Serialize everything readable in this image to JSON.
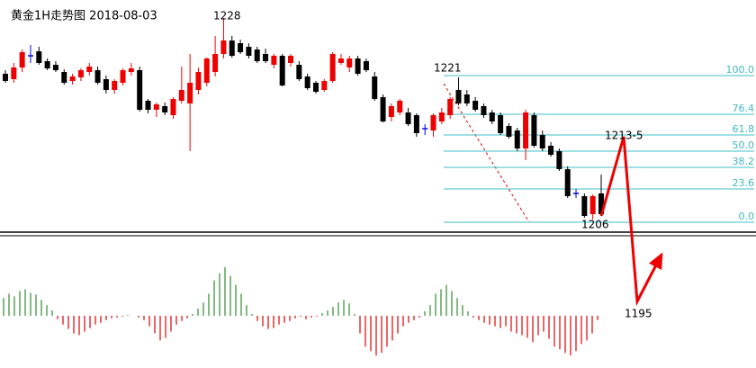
{
  "chart_data": {
    "type": "candlestick",
    "title": "黄金1H走势图 2018-08-03",
    "ylim": [
      1204,
      1230
    ],
    "up_color": "#ee0000",
    "down_color": "#000000",
    "doji_color": "#0000ee",
    "candles": {
      "open": [
        1221.8,
        1221.2,
        1222.5,
        1223.8,
        1224.3,
        1223.2,
        1222.8,
        1222.0,
        1221.0,
        1221.4,
        1222.0,
        1222.2,
        1221.2,
        1220.0,
        1220.8,
        1222.0,
        1222.2,
        1218.8,
        1217.8,
        1218.2,
        1217.2,
        1218.8,
        1218.5,
        1220.0,
        1220.8,
        1222.0,
        1224.0,
        1225.5,
        1225.2,
        1224.8,
        1224.5,
        1224.0,
        1222.8,
        1223.8,
        1223.0,
        1222.8,
        1221.5,
        1220.8,
        1220.0,
        1221.0,
        1223.0,
        1222.5,
        1223.5,
        1223.2,
        1221.5,
        1219.2,
        1217.0,
        1217.5,
        1217.5,
        1217.2,
        1215.7,
        1215.5,
        1216.5,
        1217.2,
        1220.0,
        1219.5,
        1218.8,
        1218.2,
        1217.5,
        1217.2,
        1216.0,
        1215.5,
        1213.5,
        1217.2,
        1215.0,
        1213.8,
        1213.2,
        1211.2,
        1208.5,
        1208.2,
        1206.2,
        1208.5
      ],
      "high": [
        1222.2,
        1223.0,
        1224.5,
        1225.0,
        1224.8,
        1223.5,
        1223.2,
        1222.3,
        1221.8,
        1222.4,
        1223.0,
        1222.6,
        1221.6,
        1221.2,
        1222.4,
        1223.0,
        1222.6,
        1219.0,
        1218.6,
        1218.6,
        1219.2,
        1222.6,
        1224.0,
        1222.5,
        1223.6,
        1226.0,
        1228.0,
        1226.0,
        1225.6,
        1225.2,
        1224.8,
        1224.6,
        1224.0,
        1224.0,
        1224.0,
        1223.2,
        1221.8,
        1221.0,
        1221.2,
        1224.2,
        1224.0,
        1223.8,
        1223.8,
        1223.5,
        1222.0,
        1219.5,
        1218.5,
        1219.0,
        1218.0,
        1217.4,
        1216.2,
        1217.4,
        1218.0,
        1219.2,
        1221.4,
        1220.0,
        1219.2,
        1218.5,
        1217.8,
        1217.5,
        1216.3,
        1215.8,
        1217.8,
        1217.5,
        1215.5,
        1214.2,
        1213.5,
        1211.5,
        1209.0,
        1208.5,
        1208.4,
        1210.6
      ],
      "low": [
        1220.8,
        1220.8,
        1222.0,
        1223.0,
        1222.8,
        1222.2,
        1222.0,
        1220.6,
        1220.6,
        1221.0,
        1221.6,
        1220.6,
        1219.6,
        1219.6,
        1220.5,
        1221.6,
        1217.6,
        1217.4,
        1217.0,
        1217.2,
        1216.8,
        1218.5,
        1213.2,
        1219.5,
        1220.4,
        1221.5,
        1223.5,
        1223.6,
        1224.0,
        1223.5,
        1223.0,
        1223.0,
        1222.4,
        1220.4,
        1222.6,
        1221.0,
        1220.0,
        1219.6,
        1219.8,
        1220.8,
        1222.8,
        1222.0,
        1221.6,
        1222.0,
        1218.8,
        1216.4,
        1216.5,
        1217.2,
        1216.0,
        1214.8,
        1215.0,
        1214.8,
        1216.2,
        1216.8,
        1218.3,
        1218.2,
        1217.6,
        1216.9,
        1216.2,
        1215.0,
        1214.6,
        1213.2,
        1212.2,
        1213.6,
        1213.2,
        1212.6,
        1211.0,
        1208.0,
        1208.0,
        1205.8,
        1205.6,
        1206.0
      ],
      "close": [
        1221.0,
        1222.5,
        1224.2,
        1223.8,
        1223.0,
        1222.4,
        1222.2,
        1220.8,
        1221.5,
        1222.2,
        1222.6,
        1220.8,
        1220.0,
        1221.0,
        1222.2,
        1222.4,
        1217.8,
        1217.8,
        1218.4,
        1217.5,
        1219.0,
        1220.0,
        1220.8,
        1222.0,
        1223.5,
        1224.0,
        1225.5,
        1223.8,
        1224.2,
        1223.8,
        1223.2,
        1223.2,
        1223.8,
        1220.5,
        1223.8,
        1221.2,
        1220.2,
        1219.8,
        1221.0,
        1224.0,
        1223.5,
        1223.5,
        1221.8,
        1222.2,
        1219.0,
        1216.5,
        1218.2,
        1218.8,
        1216.2,
        1215.2,
        1215.7,
        1217.2,
        1217.5,
        1219.0,
        1218.5,
        1218.5,
        1217.8,
        1217.2,
        1216.5,
        1215.2,
        1214.8,
        1213.5,
        1217.5,
        1213.8,
        1213.5,
        1212.8,
        1211.2,
        1208.2,
        1208.5,
        1206.0,
        1208.2,
        1206.2
      ]
    },
    "annotations": [
      "1228",
      "1221",
      "1206",
      "1213-5",
      "1195"
    ],
    "fibonacci": {
      "color": "#3fc1c9",
      "labels": [
        "100.0",
        "76.4",
        "61.8",
        "50.0",
        "38.2",
        "23.6",
        "0.0"
      ],
      "values": [
        1221.6,
        1217.3,
        1215.0,
        1213.2,
        1211.4,
        1209.0,
        1205.3
      ]
    },
    "projection": {
      "color": "#ee0000",
      "values": [
        1206.0,
        1214.8,
        1196.5,
        1201.7
      ]
    },
    "histogram": {
      "ylim": [
        -50,
        60
      ],
      "positive_color": "#2e8b2e",
      "negative_color": "#e00000",
      "values": [
        20,
        25,
        22,
        28,
        30,
        26,
        24,
        18,
        12,
        6,
        -4,
        -10,
        -15,
        -20,
        -22,
        -18,
        -14,
        -10,
        -8,
        -5,
        -3,
        -2,
        -1,
        1,
        0,
        -2,
        -5,
        -12,
        -20,
        -28,
        -25,
        -18,
        -10,
        -6,
        -3,
        2,
        8,
        15,
        25,
        40,
        48,
        55,
        45,
        35,
        25,
        12,
        2,
        -6,
        -12,
        -15,
        -14,
        -10,
        -8,
        -6,
        -3,
        -1,
        -4,
        -2,
        -1,
        3,
        6,
        10,
        15,
        18,
        14,
        2,
        -20,
        -35,
        -40,
        -45,
        -42,
        -35,
        -28,
        -20,
        -12,
        -8,
        -5,
        -2,
        5,
        12,
        25,
        30,
        35,
        28,
        20,
        12,
        5,
        -2,
        -5,
        -8,
        -10,
        -12,
        -14,
        -12,
        -18,
        -20,
        -22,
        -25,
        -30,
        -22,
        -18,
        -26,
        -35,
        -38,
        -42,
        -45,
        -40,
        -32,
        -28,
        -20,
        -5
      ]
    }
  }
}
